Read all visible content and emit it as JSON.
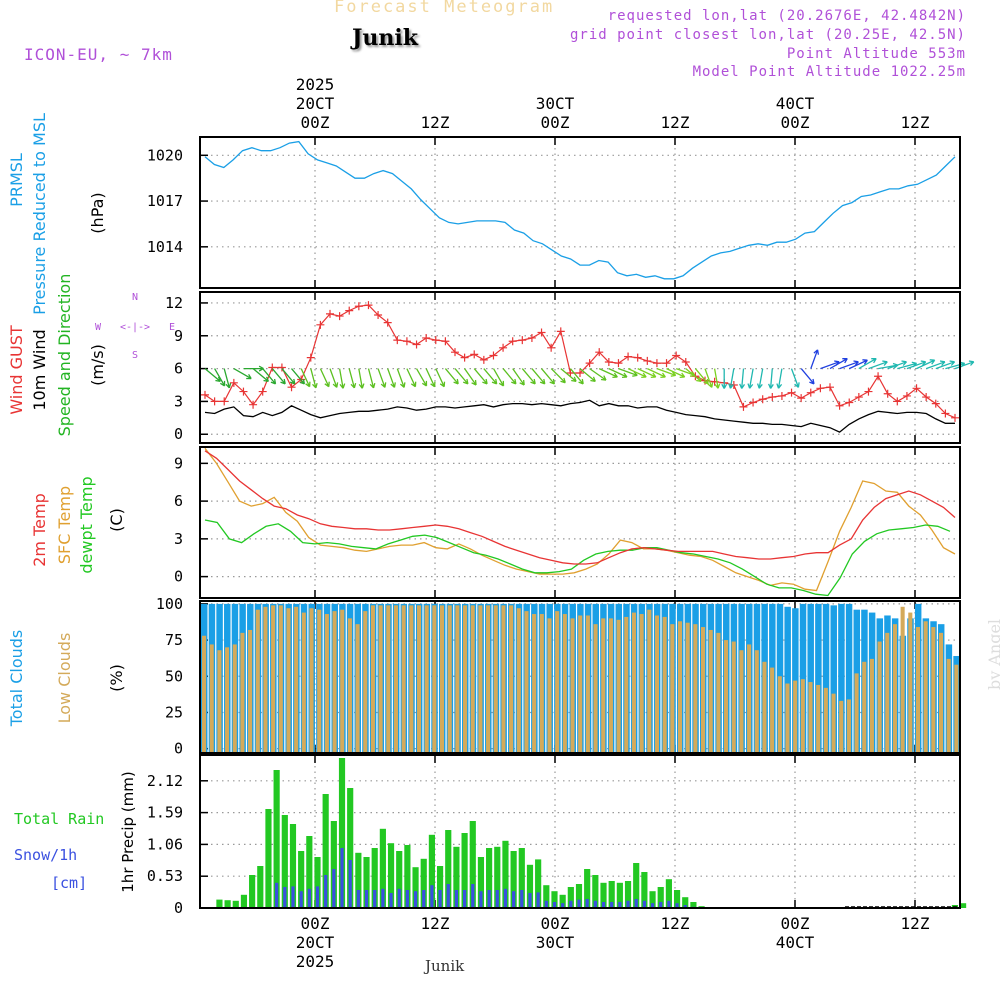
{
  "header": {
    "title": "Forecast Meteogram",
    "location": "Junik",
    "model": "ICON-EU, ~ 7km",
    "requested": "requested lon,lat (20.2676E, 42.4842N)",
    "gridpoint": "grid point closest lon,lat (20.25E, 42.5N)",
    "altitude": "Point Altitude 553m",
    "model_altitude": "Model Point Altitude 1022.25m",
    "footer_label": "Junik",
    "credit": "by Angel"
  },
  "colors": {
    "pressure": "#1a9fe6",
    "gust": "#e83434",
    "wind": "#000000",
    "direction": "#22b422",
    "temp2m": "#e83434",
    "sfc": "#e0a030",
    "dewpt": "#22c822",
    "total_clouds": "#1a9fe6",
    "low_clouds": "#d4aa5a",
    "rain": "#22c822",
    "snow": "#3a50e0",
    "purple": "#b050d8"
  },
  "chart_data": [
    {
      "id": "pressure",
      "type": "line",
      "ylabel": [
        "PRMSL",
        "Pressure Reduced to MSL",
        "(hPa)"
      ],
      "yticks": [
        1014,
        1017,
        1020
      ],
      "ylim": [
        1011.3,
        1021.2
      ],
      "series": [
        {
          "name": "PRMSL",
          "values": [
            1019.9,
            1019.4,
            1019.2,
            1019.7,
            1020.3,
            1020.5,
            1020.3,
            1020.3,
            1020.5,
            1020.8,
            1020.9,
            1020.1,
            1019.7,
            1019.5,
            1019.3,
            1018.9,
            1018.5,
            1018.5,
            1018.8,
            1019.0,
            1018.8,
            1018.3,
            1017.8,
            1017.1,
            1016.5,
            1015.9,
            1015.6,
            1015.5,
            1015.6,
            1015.7,
            1015.7,
            1015.7,
            1015.6,
            1015.1,
            1014.9,
            1014.4,
            1014.2,
            1013.8,
            1013.4,
            1013.2,
            1012.8,
            1012.8,
            1013.1,
            1013.0,
            1012.3,
            1012.1,
            1012.2,
            1012.0,
            1012.1,
            1011.9,
            1011.9,
            1012.1,
            1012.6,
            1013.0,
            1013.4,
            1013.6,
            1013.7,
            1013.9,
            1014.1,
            1014.2,
            1014.1,
            1014.3,
            1014.3,
            1014.5,
            1014.9,
            1015.0,
            1015.6,
            1016.2,
            1016.7,
            1016.9,
            1017.3,
            1017.4,
            1017.6,
            1017.8,
            1017.8,
            1018.0,
            1018.1,
            1018.4,
            1018.7,
            1019.3,
            1019.9
          ]
        }
      ]
    },
    {
      "id": "wind",
      "type": "line",
      "ylabel": [
        "Wind GUST",
        "10m Wind",
        "Speed and Direction",
        "(m/s)"
      ],
      "compass": {
        "n": "N",
        "w": "W",
        "e": "E",
        "s": "S",
        "arrows": "<-|->"
      },
      "yticks": [
        0,
        3,
        6,
        9,
        12
      ],
      "ylim": [
        -0.8,
        13
      ],
      "series": [
        {
          "name": "Wind GUST",
          "values": [
            3.6,
            3.0,
            3.0,
            4.7,
            3.9,
            2.7,
            3.9,
            6.1,
            6.1,
            4.3,
            5.0,
            7.0,
            10.0,
            11.0,
            10.8,
            11.3,
            11.7,
            11.8,
            10.9,
            10.2,
            8.6,
            8.5,
            8.2,
            8.8,
            8.6,
            8.5,
            7.5,
            7.0,
            7.3,
            6.8,
            7.2,
            7.9,
            8.5,
            8.6,
            8.8,
            9.3,
            7.9,
            9.4,
            5.6,
            5.6,
            6.5,
            7.5,
            6.6,
            6.5,
            7.1,
            7.0,
            6.7,
            6.5,
            6.5,
            7.2,
            6.6,
            5.3,
            4.9,
            4.8,
            4.7,
            4.5,
            2.5,
            2.9,
            3.2,
            3.4,
            3.5,
            3.8,
            3.3,
            3.8,
            4.2,
            4.3,
            2.6,
            2.9,
            3.4,
            3.9,
            5.3,
            3.7,
            3.0,
            3.5,
            4.2,
            3.4,
            2.8,
            1.9,
            1.5
          ]
        },
        {
          "name": "10m Wind",
          "values": [
            2.0,
            1.9,
            2.3,
            2.5,
            1.7,
            1.6,
            2.0,
            1.7,
            2.0,
            2.6,
            2.2,
            1.8,
            1.5,
            1.7,
            1.9,
            2.0,
            2.1,
            2.1,
            2.2,
            2.3,
            2.5,
            2.4,
            2.2,
            2.3,
            2.5,
            2.5,
            2.4,
            2.5,
            2.6,
            2.7,
            2.5,
            2.7,
            2.8,
            2.8,
            2.7,
            2.8,
            2.7,
            2.6,
            2.8,
            2.9,
            3.1,
            2.6,
            2.8,
            2.6,
            2.6,
            2.4,
            2.5,
            2.5,
            2.2,
            2.0,
            1.8,
            1.7,
            1.6,
            1.4,
            1.3,
            1.2,
            1.1,
            1.0,
            1.0,
            0.9,
            0.9,
            0.8,
            0.7,
            1.0,
            0.8,
            0.6,
            0.2,
            0.9,
            1.4,
            1.8,
            2.1,
            2.0,
            1.9,
            2.0,
            2.0,
            1.9,
            1.4,
            1.0,
            1.0
          ]
        },
        {
          "name": "Speed and Direction",
          "dir_deg": [
            310,
            330,
            345,
            300,
            270,
            310,
            320,
            320,
            320,
            320,
            335,
            345,
            335,
            340,
            350,
            345,
            350,
            345,
            340,
            340,
            340,
            335,
            330,
            335,
            335,
            320,
            320,
            325,
            320,
            320,
            330,
            320,
            325,
            320,
            320,
            320,
            315,
            310,
            320,
            310,
            305,
            295,
            295,
            290,
            295,
            295,
            295,
            290,
            295,
            290,
            310,
            320,
            340,
            350,
            0,
            10,
            5,
            10,
            10,
            5,
            10,
            340,
            320,
            200,
            250,
            240,
            250,
            245,
            240,
            250,
            260,
            250,
            255,
            250,
            245,
            250,
            250,
            255,
            250
          ]
        }
      ]
    },
    {
      "id": "temp",
      "type": "line",
      "ylabel": [
        "2m Temp",
        "SFC Temp",
        "dewpt Temp",
        "(C)"
      ],
      "yticks": [
        0,
        3,
        6,
        9
      ],
      "ylim": [
        -1.7,
        10.3
      ],
      "series": [
        {
          "name": "2m Temp",
          "values": [
            10.0,
            9.4,
            8.5,
            7.6,
            6.9,
            6.2,
            5.6,
            5.4,
            4.9,
            4.6,
            4.2,
            4.0,
            3.9,
            3.8,
            3.8,
            3.7,
            3.7,
            3.8,
            3.9,
            4.0,
            4.1,
            4.0,
            3.8,
            3.5,
            3.2,
            2.8,
            2.4,
            2.1,
            1.8,
            1.5,
            1.3,
            1.1,
            1.0,
            1.0,
            1.1,
            1.5,
            1.9,
            2.2,
            2.3,
            2.2,
            2.1,
            2.0,
            2.0,
            2.0,
            2.0,
            1.8,
            1.6,
            1.5,
            1.4,
            1.4,
            1.5,
            1.6,
            1.8,
            1.9,
            1.9,
            2.5,
            3.0,
            4.5,
            5.5,
            6.2,
            6.5,
            6.8,
            6.5,
            6.0,
            5.5,
            4.7
          ]
        },
        {
          "name": "SFC Temp",
          "values": [
            10.2,
            9.0,
            7.5,
            6.0,
            5.6,
            5.8,
            6.3,
            5.1,
            4.4,
            3.1,
            2.5,
            2.4,
            2.3,
            2.1,
            2.0,
            2.2,
            2.4,
            2.5,
            2.5,
            2.7,
            2.3,
            2.2,
            2.6,
            2.2,
            1.7,
            1.3,
            0.9,
            0.6,
            0.4,
            0.2,
            0.2,
            0.2,
            0.3,
            0.6,
            1.0,
            1.8,
            2.9,
            2.7,
            2.2,
            2.2,
            2.1,
            1.9,
            1.7,
            1.6,
            1.3,
            0.8,
            0.3,
            0.0,
            -0.3,
            -0.7,
            -0.5,
            -0.6,
            -1.0,
            -1.1,
            1.2,
            3.6,
            5.5,
            7.6,
            7.4,
            6.8,
            6.7,
            5.6,
            4.9,
            3.7,
            2.3,
            1.8
          ]
        },
        {
          "name": "dewpt Temp",
          "values": [
            4.5,
            4.3,
            3.0,
            2.7,
            3.4,
            4.0,
            4.2,
            3.6,
            2.7,
            2.6,
            2.7,
            2.6,
            2.4,
            2.3,
            2.2,
            2.6,
            2.9,
            3.2,
            3.3,
            3.1,
            2.7,
            2.3,
            1.9,
            1.7,
            1.4,
            1.0,
            0.6,
            0.3,
            0.3,
            0.4,
            0.6,
            1.3,
            1.8,
            2.0,
            2.1,
            2.1,
            2.3,
            2.3,
            2.1,
            1.9,
            1.8,
            1.6,
            1.4,
            1.1,
            0.6,
            0.0,
            -0.6,
            -0.9,
            -0.9,
            -1.1,
            -1.4,
            -1.5,
            -0.1,
            1.8,
            2.8,
            3.4,
            3.7,
            3.8,
            3.9,
            4.1,
            4.0,
            3.6
          ]
        }
      ]
    },
    {
      "id": "clouds",
      "type": "bar",
      "ylabel": [
        "Total Clouds",
        "Low Clouds",
        "(%)"
      ],
      "yticks": [
        0,
        25,
        50,
        75,
        100
      ],
      "ylim": [
        -3,
        102
      ],
      "series": [
        {
          "name": "Total Clouds",
          "values": [
            100,
            100,
            100,
            100,
            100,
            100,
            100,
            100,
            100,
            100,
            100,
            100,
            100,
            100,
            100,
            100,
            100,
            100,
            100,
            100,
            100,
            100,
            100,
            100,
            100,
            100,
            100,
            100,
            100,
            100,
            100,
            100,
            100,
            100,
            100,
            100,
            100,
            100,
            100,
            100,
            100,
            100,
            100,
            100,
            100,
            100,
            100,
            100,
            100,
            100,
            100,
            100,
            100,
            100,
            100,
            100,
            100,
            100,
            100,
            100,
            100,
            100,
            100,
            100,
            100,
            100,
            100,
            100,
            100,
            100,
            100,
            100,
            100,
            100,
            100,
            100,
            98,
            97,
            100,
            100,
            100,
            100,
            99,
            100,
            100,
            96,
            96,
            94,
            90,
            92,
            90,
            78,
            90,
            100,
            90,
            88,
            86,
            72,
            64
          ]
        },
        {
          "name": "Low Clouds",
          "values": [
            78,
            72,
            68,
            70,
            72,
            80,
            82,
            96,
            98,
            99,
            99,
            97,
            98,
            94,
            97,
            96,
            93,
            95,
            96,
            90,
            86,
            95,
            99,
            99,
            99,
            99,
            99,
            99,
            99,
            99,
            99,
            99,
            99,
            99,
            99,
            99,
            99,
            99,
            99,
            99,
            99,
            97,
            95,
            93,
            93,
            90,
            95,
            93,
            90,
            92,
            92,
            86,
            90,
            90,
            89,
            91,
            94,
            93,
            96,
            92,
            91,
            86,
            88,
            87,
            86,
            84,
            82,
            80,
            75,
            74,
            68,
            72,
            68,
            60,
            56,
            50,
            45,
            47,
            48,
            46,
            44,
            42,
            38,
            33,
            34,
            52,
            60,
            62,
            74,
            80,
            86,
            98,
            94,
            84,
            88,
            84,
            80,
            62,
            58
          ]
        }
      ]
    },
    {
      "id": "precip",
      "type": "bar",
      "ylabel": [
        "1hr Precip (mm)"
      ],
      "legend": {
        "total_rain": "Total  Rain",
        "snow": "Snow/1h",
        "unit": "[cm]"
      },
      "yticks": [
        0,
        0.53,
        1.06,
        1.59,
        2.12
      ],
      "ylim": [
        0,
        2.55
      ],
      "series": [
        {
          "name": "Total Rain",
          "values": [
            0,
            0.14,
            0.13,
            0.12,
            0.22,
            0.55,
            0.7,
            1.65,
            2.3,
            1.55,
            1.4,
            0.95,
            1.2,
            0.85,
            1.9,
            1.45,
            2.5,
            2.0,
            0.92,
            0.85,
            1.0,
            1.32,
            1.08,
            0.95,
            1.05,
            0.68,
            0.82,
            1.22,
            0.7,
            1.3,
            1.02,
            1.25,
            1.45,
            0.85,
            1.0,
            1.02,
            1.12,
            0.95,
            1.0,
            0.72,
            0.81,
            0.38,
            0.28,
            0.22,
            0.35,
            0.4,
            0.65,
            0.55,
            0.42,
            0.45,
            0.42,
            0.45,
            0.75,
            0.6,
            0.28,
            0.35,
            0.48,
            0.3,
            0.18,
            0.1,
            0.03,
            0,
            0,
            0,
            0,
            0,
            0,
            0,
            0,
            0,
            0,
            0,
            0,
            0,
            0,
            0,
            0,
            0,
            0,
            0,
            0,
            0,
            0,
            0,
            0,
            0,
            0,
            0,
            0,
            0,
            0,
            0.05,
            0.08
          ]
        },
        {
          "name": "Snow/1h",
          "values": [
            0,
            0,
            0,
            0,
            0,
            0,
            0,
            0,
            0.42,
            0.35,
            0.36,
            0.28,
            0.32,
            0.36,
            0.55,
            0.65,
            1.0,
            0.8,
            0.3,
            0.3,
            0.3,
            0.32,
            0.25,
            0.32,
            0.3,
            0.28,
            0.3,
            0.38,
            0.3,
            0.4,
            0.3,
            0.3,
            0.4,
            0.28,
            0.3,
            0.3,
            0.32,
            0.28,
            0.3,
            0.25,
            0.26,
            0.12,
            0.1,
            0.08,
            0.12,
            0.14,
            0.15,
            0.12,
            0.1,
            0.1,
            0.1,
            0.12,
            0.15,
            0.12,
            0.08,
            0.1,
            0.12,
            0.08,
            0.05,
            0.02,
            0,
            0,
            0,
            0,
            0,
            0,
            0,
            0,
            0,
            0,
            0,
            0,
            0,
            0,
            0,
            0,
            0,
            0,
            0,
            0,
            0,
            0,
            0,
            0,
            0,
            0,
            0,
            0,
            0,
            0,
            0,
            0
          ]
        }
      ]
    }
  ],
  "time_axis": {
    "top_labels": [
      {
        "hour": 18,
        "lines": [
          "2025",
          "20CT",
          "00Z"
        ]
      },
      {
        "hour": 30,
        "lines": [
          "12Z"
        ]
      },
      {
        "hour": 42,
        "lines": [
          "30CT",
          "00Z"
        ]
      },
      {
        "hour": 54,
        "lines": [
          "12Z"
        ]
      },
      {
        "hour": 66,
        "lines": [
          "40CT",
          "00Z"
        ]
      },
      {
        "hour": 78,
        "lines": [
          "12Z"
        ]
      }
    ],
    "bottom_labels": [
      {
        "hour": 18,
        "lines": [
          "00Z",
          "20CT",
          "2025"
        ]
      },
      {
        "hour": 30,
        "lines": [
          "12Z"
        ]
      },
      {
        "hour": 42,
        "lines": [
          "00Z",
          "30CT"
        ]
      },
      {
        "hour": 54,
        "lines": [
          "12Z"
        ]
      },
      {
        "hour": 66,
        "lines": [
          "00Z",
          "40CT"
        ]
      },
      {
        "hour": 78,
        "lines": [
          "12Z"
        ]
      }
    ],
    "range_hours": [
      6.5,
      82.5
    ]
  }
}
